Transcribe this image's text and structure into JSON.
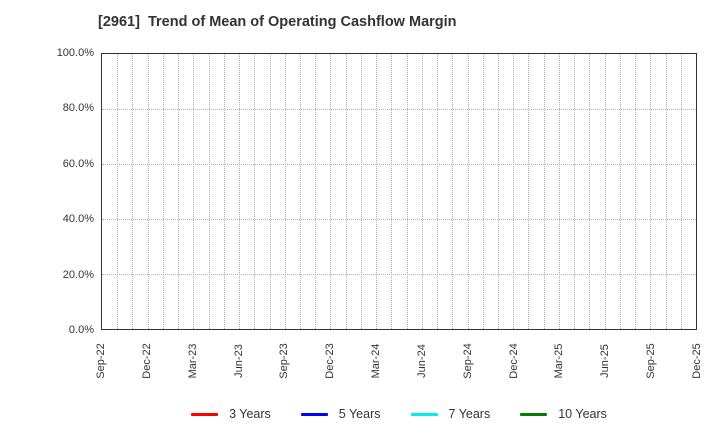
{
  "chart_data": {
    "type": "line",
    "title": "[2961]  Trend of Mean of Operating Cashflow Margin",
    "x_tick_labels": [
      "Sep-22",
      "Dec-22",
      "Mar-23",
      "Jun-23",
      "Sep-23",
      "Dec-23",
      "Mar-24",
      "Jun-24",
      "Sep-24",
      "Dec-24",
      "Mar-25",
      "Jun-25",
      "Sep-25",
      "Dec-25"
    ],
    "months_per_tick": 3,
    "y_tick_labels": [
      "0.0%",
      "20.0%",
      "40.0%",
      "60.0%",
      "80.0%",
      "100.0%"
    ],
    "y_tick_values": [
      0,
      20,
      40,
      60,
      80,
      100
    ],
    "ylim": [
      0,
      100
    ],
    "grid": true,
    "grid_color": "#b0b0b0",
    "axis_color": "#333333",
    "text_color": "#333333",
    "legend_position": "bottom",
    "series": [
      {
        "name": "3 Years",
        "color": "#ff0000",
        "values": []
      },
      {
        "name": "5 Years",
        "color": "#0000ff",
        "values": []
      },
      {
        "name": "7 Years",
        "color": "#00eeee",
        "values": []
      },
      {
        "name": "10 Years",
        "color": "#008000",
        "values": []
      }
    ]
  }
}
